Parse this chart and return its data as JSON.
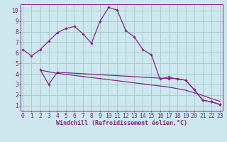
{
  "bg_color": "#cce8ee",
  "grid_color": "#aacccc",
  "line_color": "#882288",
  "xlabel": "Windchill (Refroidissement éolien,°C)",
  "xlabel_fontsize": 6.0,
  "ytick_labels": [
    "1",
    "2",
    "3",
    "4",
    "5",
    "6",
    "7",
    "8",
    "9",
    "10"
  ],
  "ytick_vals": [
    1,
    2,
    3,
    4,
    5,
    6,
    7,
    8,
    9,
    10
  ],
  "xtick_vals": [
    0,
    1,
    2,
    3,
    4,
    5,
    6,
    7,
    8,
    9,
    10,
    11,
    12,
    13,
    14,
    15,
    16,
    17,
    18,
    19,
    20,
    21,
    22,
    23
  ],
  "xlim": [
    -0.3,
    23.3
  ],
  "ylim": [
    0.5,
    10.6
  ],
  "line1_x": [
    0,
    1,
    2,
    3,
    4,
    5,
    6,
    7,
    8,
    9,
    10,
    11,
    12,
    13,
    14,
    15,
    16,
    17,
    18,
    19,
    20,
    21,
    22,
    23
  ],
  "line1_y": [
    6.3,
    5.7,
    6.3,
    7.1,
    7.9,
    8.3,
    8.5,
    7.8,
    6.9,
    9.0,
    10.3,
    10.05,
    8.1,
    7.5,
    6.3,
    5.8,
    3.5,
    3.7,
    3.5,
    3.4,
    2.5,
    1.5,
    1.35,
    1.1
  ],
  "line2_x": [
    2,
    3,
    4,
    17,
    18,
    19,
    20,
    21,
    22,
    23
  ],
  "line2_y": [
    4.4,
    3.0,
    4.15,
    3.55,
    3.55,
    3.4,
    2.5,
    1.5,
    1.35,
    1.1
  ],
  "line3_x": [
    2,
    3,
    4,
    5,
    6,
    7,
    8,
    9,
    10,
    11,
    12,
    13,
    14,
    15,
    16,
    17,
    18,
    19,
    20,
    21,
    22,
    23
  ],
  "line3_y": [
    4.35,
    4.2,
    4.05,
    3.95,
    3.85,
    3.75,
    3.65,
    3.55,
    3.45,
    3.35,
    3.25,
    3.15,
    3.05,
    2.95,
    2.85,
    2.75,
    2.6,
    2.45,
    2.2,
    1.95,
    1.65,
    1.4
  ],
  "tick_fontsize": 5.8
}
